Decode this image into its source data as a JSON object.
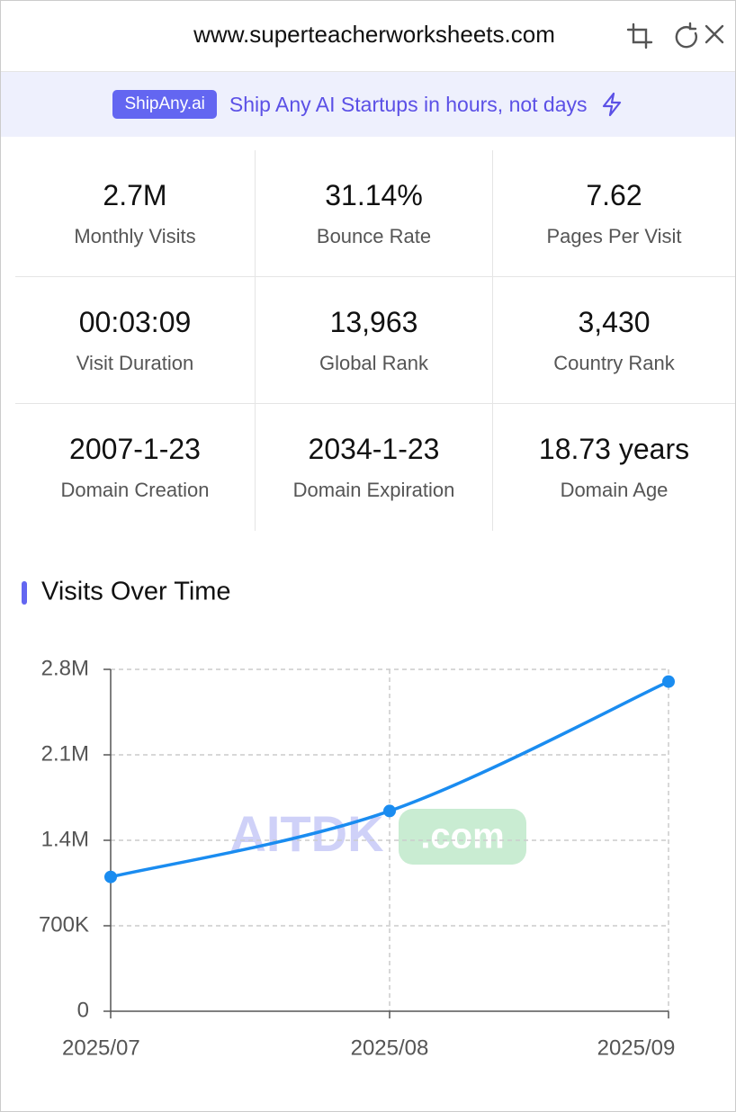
{
  "header": {
    "url": "www.superteacherworksheets.com"
  },
  "banner": {
    "badge": "ShipAny.ai",
    "text": "Ship Any AI Startups in hours, not days"
  },
  "stats": [
    {
      "value": "2.7M",
      "label": "Monthly Visits"
    },
    {
      "value": "31.14%",
      "label": "Bounce Rate"
    },
    {
      "value": "7.62",
      "label": "Pages Per Visit"
    },
    {
      "value": "00:03:09",
      "label": "Visit Duration"
    },
    {
      "value": "13,963",
      "label": "Global Rank"
    },
    {
      "value": "3,430",
      "label": "Country Rank"
    },
    {
      "value": "2007-1-23",
      "label": "Domain Creation"
    },
    {
      "value": "2034-1-23",
      "label": "Domain Expiration"
    },
    {
      "value": "18.73 years",
      "label": "Domain Age"
    }
  ],
  "watermark": {
    "brand": "AITDK",
    "suffix": ".com"
  },
  "chart_data": {
    "type": "line",
    "title": "Visits Over Time",
    "categories": [
      "2025/07",
      "2025/08",
      "2025/09"
    ],
    "values": [
      1100000,
      1640000,
      2700000
    ],
    "color": "#1a8cf0",
    "ylim": [
      0,
      2800000
    ],
    "yticks": [
      0,
      {
        "value": 700000,
        "label": "700K"
      },
      {
        "value": 1400000,
        "label": "1.4M"
      },
      {
        "value": 2100000,
        "label": "2.1M"
      },
      {
        "value": 2800000,
        "label": "2.8M"
      }
    ],
    "grid": true
  }
}
